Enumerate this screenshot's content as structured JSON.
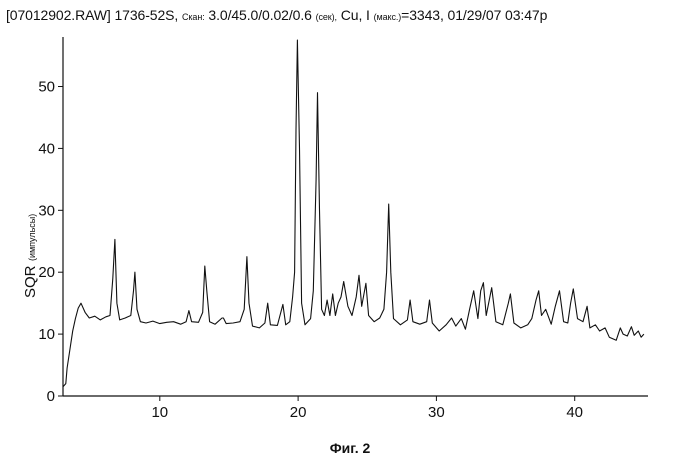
{
  "header": {
    "file": "[07012902.RAW] 1736-52S,",
    "scan_label": "Скан:",
    "scan_params": "3.0/45.0/0.02/0.6",
    "sec_label": "(сек),",
    "cu": "Cu, I",
    "imax_label": "(макс.)",
    "imax_value": "=3343, 01/29/07 03:47p"
  },
  "caption": "Фиг. 2",
  "chart_data": {
    "type": "line",
    "ylabel_main": "SQR",
    "ylabel_unit": "(импульсы)",
    "xlim": [
      3,
      45.3
    ],
    "ylim": [
      0,
      58
    ],
    "x_ticks": [
      10,
      20,
      30,
      40
    ],
    "y_ticks": [
      0,
      10,
      20,
      30,
      40,
      50
    ],
    "grid": false,
    "series": [
      {
        "points": [
          [
            3.0,
            1.5
          ],
          [
            3.2,
            2.0
          ],
          [
            3.3,
            4.5
          ],
          [
            3.5,
            7.5
          ],
          [
            3.7,
            10.5
          ],
          [
            3.9,
            12.5
          ],
          [
            4.1,
            14.2
          ],
          [
            4.3,
            15.0
          ],
          [
            4.6,
            13.5
          ],
          [
            4.9,
            12.6
          ],
          [
            5.3,
            12.9
          ],
          [
            5.7,
            12.3
          ],
          [
            6.1,
            12.8
          ],
          [
            6.4,
            13.0
          ],
          [
            6.6,
            19.0
          ],
          [
            6.75,
            25.3
          ],
          [
            6.9,
            15.0
          ],
          [
            7.1,
            12.3
          ],
          [
            7.5,
            12.6
          ],
          [
            7.9,
            13.0
          ],
          [
            8.1,
            17.0
          ],
          [
            8.2,
            20.0
          ],
          [
            8.35,
            14.0
          ],
          [
            8.6,
            12.0
          ],
          [
            9.0,
            11.8
          ],
          [
            9.5,
            12.1
          ],
          [
            10.0,
            11.7
          ],
          [
            10.5,
            11.9
          ],
          [
            11.0,
            12.0
          ],
          [
            11.5,
            11.6
          ],
          [
            11.9,
            12.0
          ],
          [
            12.1,
            13.8
          ],
          [
            12.3,
            12.0
          ],
          [
            12.8,
            11.9
          ],
          [
            13.1,
            13.5
          ],
          [
            13.25,
            21.0
          ],
          [
            13.4,
            17.0
          ],
          [
            13.6,
            12.0
          ],
          [
            14.0,
            11.6
          ],
          [
            14.5,
            12.6
          ],
          [
            14.6,
            12.6
          ],
          [
            14.8,
            11.7
          ],
          [
            15.3,
            11.8
          ],
          [
            15.8,
            12.0
          ],
          [
            16.1,
            14.0
          ],
          [
            16.3,
            22.5
          ],
          [
            16.45,
            15.0
          ],
          [
            16.7,
            11.3
          ],
          [
            17.2,
            11.0
          ],
          [
            17.6,
            11.8
          ],
          [
            17.8,
            15.0
          ],
          [
            18.0,
            11.5
          ],
          [
            18.5,
            11.4
          ],
          [
            18.9,
            14.8
          ],
          [
            19.1,
            11.5
          ],
          [
            19.4,
            12.0
          ],
          [
            19.6,
            16.0
          ],
          [
            19.75,
            20.0
          ],
          [
            19.85,
            43.0
          ],
          [
            19.95,
            57.5
          ],
          [
            20.1,
            40.0
          ],
          [
            20.25,
            15.0
          ],
          [
            20.5,
            11.5
          ],
          [
            20.9,
            12.5
          ],
          [
            21.1,
            17.0
          ],
          [
            21.3,
            35.0
          ],
          [
            21.4,
            49.0
          ],
          [
            21.55,
            30.0
          ],
          [
            21.7,
            14.0
          ],
          [
            21.9,
            13.0
          ],
          [
            22.1,
            15.5
          ],
          [
            22.3,
            13.0
          ],
          [
            22.5,
            16.5
          ],
          [
            22.7,
            13.0
          ],
          [
            22.9,
            15.0
          ],
          [
            23.1,
            16.0
          ],
          [
            23.3,
            18.5
          ],
          [
            23.6,
            14.5
          ],
          [
            23.9,
            13.0
          ],
          [
            24.2,
            16.0
          ],
          [
            24.4,
            19.5
          ],
          [
            24.6,
            14.5
          ],
          [
            24.9,
            18.2
          ],
          [
            25.1,
            13.0
          ],
          [
            25.5,
            12.0
          ],
          [
            25.9,
            12.6
          ],
          [
            26.2,
            14.0
          ],
          [
            26.4,
            20.0
          ],
          [
            26.55,
            31.0
          ],
          [
            26.7,
            20.0
          ],
          [
            26.9,
            12.5
          ],
          [
            27.4,
            11.5
          ],
          [
            27.9,
            12.3
          ],
          [
            28.1,
            15.5
          ],
          [
            28.3,
            12.0
          ],
          [
            28.8,
            11.6
          ],
          [
            29.3,
            12.0
          ],
          [
            29.5,
            15.5
          ],
          [
            29.7,
            11.8
          ],
          [
            30.2,
            10.5
          ],
          [
            30.7,
            11.5
          ],
          [
            31.1,
            12.6
          ],
          [
            31.4,
            11.3
          ],
          [
            31.8,
            12.5
          ],
          [
            32.1,
            10.8
          ],
          [
            32.4,
            14.0
          ],
          [
            32.7,
            17.0
          ],
          [
            33.0,
            12.5
          ],
          [
            33.2,
            17.0
          ],
          [
            33.4,
            18.3
          ],
          [
            33.6,
            13.0
          ],
          [
            34.0,
            17.5
          ],
          [
            34.3,
            12.0
          ],
          [
            34.8,
            11.5
          ],
          [
            35.2,
            15.0
          ],
          [
            35.35,
            16.5
          ],
          [
            35.6,
            11.8
          ],
          [
            36.1,
            11.0
          ],
          [
            36.6,
            11.5
          ],
          [
            36.9,
            12.5
          ],
          [
            37.2,
            15.5
          ],
          [
            37.4,
            17.0
          ],
          [
            37.6,
            13.0
          ],
          [
            37.9,
            14.0
          ],
          [
            38.3,
            11.6
          ],
          [
            38.6,
            14.5
          ],
          [
            38.9,
            17.0
          ],
          [
            39.2,
            12.0
          ],
          [
            39.5,
            11.8
          ],
          [
            39.7,
            15.0
          ],
          [
            39.9,
            17.3
          ],
          [
            40.2,
            12.5
          ],
          [
            40.6,
            12.0
          ],
          [
            40.9,
            14.5
          ],
          [
            41.1,
            11.0
          ],
          [
            41.5,
            11.5
          ],
          [
            41.8,
            10.5
          ],
          [
            42.2,
            11.0
          ],
          [
            42.5,
            9.5
          ],
          [
            43.0,
            9.0
          ],
          [
            43.3,
            11.0
          ],
          [
            43.5,
            10.0
          ],
          [
            43.8,
            9.7
          ],
          [
            44.1,
            11.2
          ],
          [
            44.3,
            9.8
          ],
          [
            44.6,
            10.5
          ],
          [
            44.8,
            9.5
          ],
          [
            45.0,
            10.0
          ]
        ]
      }
    ]
  }
}
